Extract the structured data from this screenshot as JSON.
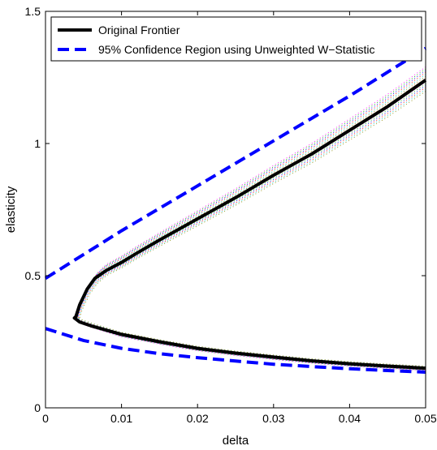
{
  "chart_data": {
    "type": "line",
    "xlabel": "delta",
    "ylabel": "elasticity",
    "xlim": [
      0,
      0.05
    ],
    "ylim": [
      0,
      1.5
    ],
    "xticks": [
      0,
      0.01,
      0.02,
      0.03,
      0.04,
      0.05
    ],
    "xtick_labels": [
      "0",
      "0.01",
      "0.02",
      "0.03",
      "0.04",
      "0.05"
    ],
    "yticks": [
      0,
      0.5,
      1,
      1.5
    ],
    "ytick_labels": [
      "0",
      "0.5",
      "1",
      "1.5"
    ],
    "grid": false,
    "legend_position": "top-left",
    "series": [
      {
        "name": "Original Frontier",
        "color": "#000000",
        "style": "solid",
        "points": [
          [
            0.05,
            1.24
          ],
          [
            0.045,
            1.14
          ],
          [
            0.04,
            1.05
          ],
          [
            0.035,
            0.96
          ],
          [
            0.03,
            0.88
          ],
          [
            0.025,
            0.795
          ],
          [
            0.02,
            0.715
          ],
          [
            0.015,
            0.635
          ],
          [
            0.012,
            0.585
          ],
          [
            0.01,
            0.55
          ],
          [
            0.008,
            0.52
          ],
          [
            0.0065,
            0.49
          ],
          [
            0.0055,
            0.45
          ],
          [
            0.0045,
            0.39
          ],
          [
            0.004,
            0.345
          ],
          [
            0.0038,
            0.34
          ],
          [
            0.0045,
            0.325
          ],
          [
            0.006,
            0.31
          ],
          [
            0.01,
            0.278
          ],
          [
            0.015,
            0.25
          ],
          [
            0.02,
            0.225
          ],
          [
            0.025,
            0.207
          ],
          [
            0.03,
            0.192
          ],
          [
            0.035,
            0.178
          ],
          [
            0.04,
            0.167
          ],
          [
            0.045,
            0.158
          ],
          [
            0.05,
            0.15
          ]
        ]
      },
      {
        "name": "95% Confidence Region using Unweighted W−Statistic",
        "color": "#0000ff",
        "style": "dashed",
        "segments": [
          [
            [
              0,
              0.49
            ],
            [
              0.01,
              0.67
            ],
            [
              0.02,
              0.84
            ],
            [
              0.03,
              1.01
            ],
            [
              0.04,
              1.18
            ],
            [
              0.05,
              1.36
            ]
          ],
          [
            [
              0,
              0.3
            ],
            [
              0.005,
              0.255
            ],
            [
              0.01,
              0.225
            ],
            [
              0.015,
              0.205
            ],
            [
              0.02,
              0.19
            ],
            [
              0.025,
              0.177
            ],
            [
              0.03,
              0.165
            ],
            [
              0.035,
              0.156
            ],
            [
              0.04,
              0.148
            ],
            [
              0.045,
              0.141
            ],
            [
              0.05,
              0.135
            ]
          ]
        ]
      }
    ],
    "background_curves": {
      "count": 14,
      "style": "dotted",
      "colors": [
        "#ff00ff",
        "#00aa00",
        "#0000ff",
        "#ff0000",
        "#00cccc",
        "#888800",
        "#ff8800",
        "#8800ff"
      ]
    }
  }
}
